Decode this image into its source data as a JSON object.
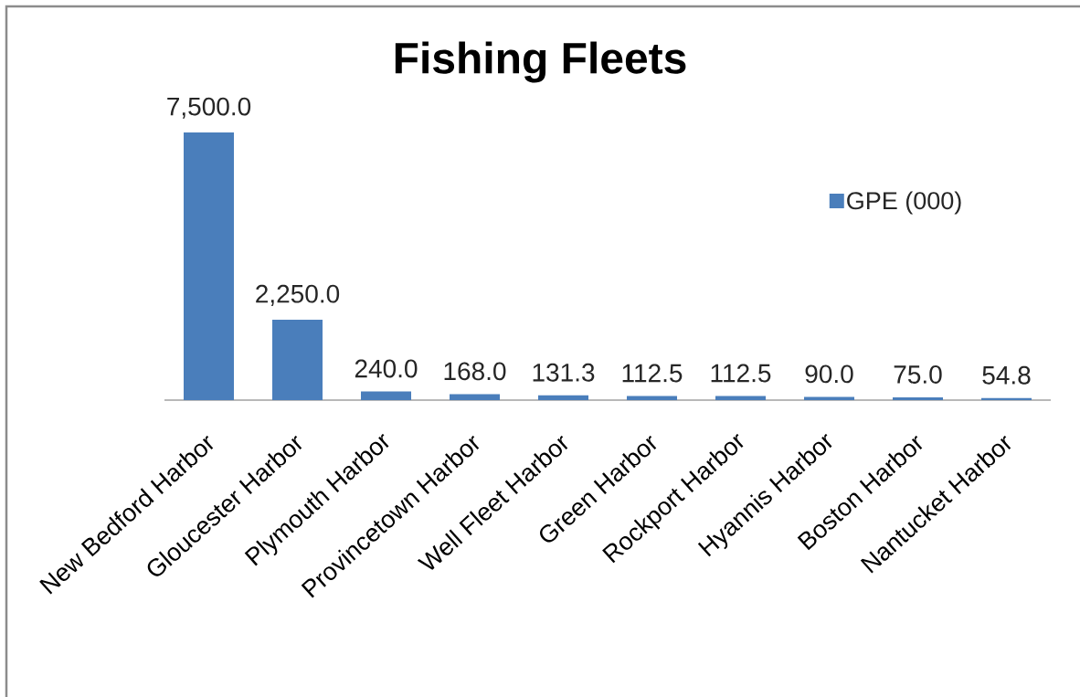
{
  "chart_data": {
    "type": "bar",
    "title": "Fishing Fleets",
    "categories": [
      "New Bedford Harbor",
      "Gloucester Harbor",
      "Plymouth Harbor",
      "Provincetown Harbor",
      "Well Fleet Harbor",
      "Green Harbor",
      "Rockport Harbor",
      "Hyannis Harbor",
      "Boston Harbor",
      "Nantucket Harbor"
    ],
    "series": [
      {
        "name": "GPE (000)",
        "color": "#4a7ebb",
        "values": [
          7500,
          2250,
          240,
          168,
          131.3,
          112.5,
          112.5,
          90,
          75,
          54.8
        ],
        "value_labels": [
          "7,500.0",
          "2,250.0",
          "240.0",
          "168.0",
          "131.3",
          "112.5",
          "112.5",
          "90.0",
          "75.0",
          "54.8"
        ]
      }
    ],
    "legend": "top right",
    "tick_labels": "x"
  }
}
